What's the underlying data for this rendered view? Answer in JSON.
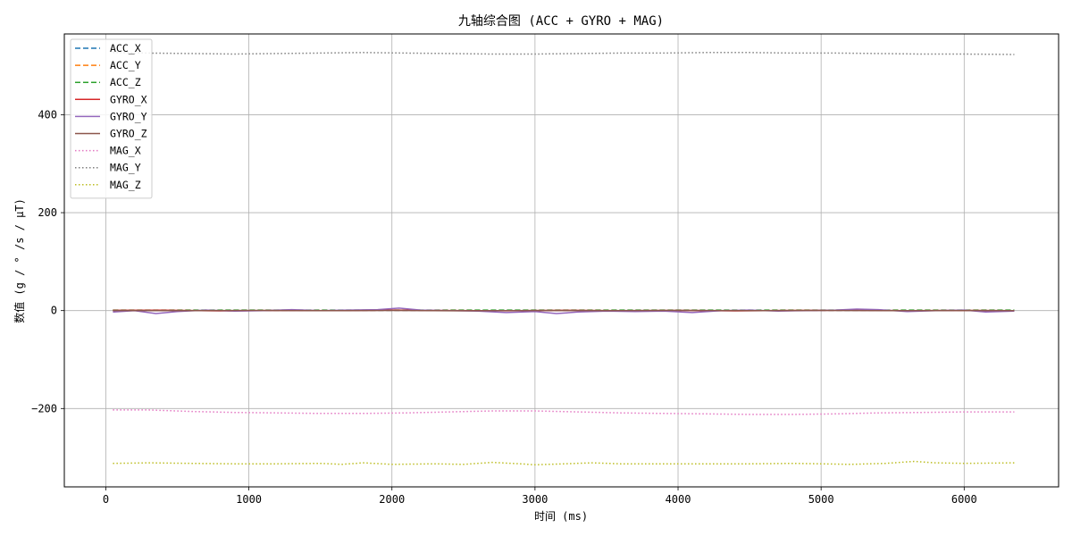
{
  "chart_data": {
    "type": "line",
    "title": "九轴综合图 (ACC + GYRO + MAG)",
    "xlabel": "时间 (ms)",
    "ylabel": "数值 (g / ° /s / μT)",
    "xlim": [
      -290,
      6660
    ],
    "ylim": [
      -360,
      565
    ],
    "xticks": [
      0,
      1000,
      2000,
      3000,
      4000,
      5000,
      6000
    ],
    "yticks": [
      -200,
      0,
      200,
      400
    ],
    "grid": true,
    "legend": "top-left",
    "series": [
      {
        "name": "ACC_X",
        "color": "#1f77b4",
        "dash": "dashed",
        "x": [
          50,
          6350
        ],
        "y": [
          0.3,
          0.3
        ]
      },
      {
        "name": "ACC_Y",
        "color": "#ff7f0e",
        "dash": "dashed",
        "x": [
          50,
          6350
        ],
        "y": [
          0.5,
          0.5
        ]
      },
      {
        "name": "ACC_Z",
        "color": "#2ca02c",
        "dash": "dashed",
        "x": [
          50,
          6350
        ],
        "y": [
          1.0,
          1.0
        ]
      },
      {
        "name": "GYRO_X",
        "color": "#d62728",
        "dash": "solid",
        "x": [
          50,
          400,
          800,
          1200,
          1600,
          2000,
          2400,
          2800,
          3200,
          3600,
          4000,
          4400,
          4800,
          5200,
          5600,
          6000,
          6350
        ],
        "y": [
          0.5,
          0.8,
          -0.5,
          0.4,
          -0.3,
          1.0,
          0.2,
          -0.4,
          0.6,
          -0.2,
          0.3,
          -0.5,
          0.4,
          0.9,
          -0.2,
          0.3,
          -0.1
        ]
      },
      {
        "name": "GYRO_Y",
        "color": "#9467bd",
        "dash": "solid",
        "x": [
          50,
          200,
          350,
          500,
          700,
          900,
          1100,
          1300,
          1500,
          1700,
          1900,
          2050,
          2200,
          2400,
          2600,
          2800,
          3000,
          3150,
          3300,
          3500,
          3700,
          3900,
          4100,
          4300,
          4500,
          4700,
          4900,
          5100,
          5250,
          5400,
          5600,
          5800,
          6000,
          6150,
          6350
        ],
        "y": [
          -3,
          0,
          -6,
          -2,
          1,
          -1,
          0,
          2,
          0,
          1,
          2,
          5,
          1,
          0,
          -1,
          -4,
          -2,
          -6,
          -3,
          -1,
          -2,
          -1,
          -4,
          0,
          1,
          -1,
          0,
          1,
          3,
          2,
          -2,
          0,
          1,
          -3,
          -1
        ]
      },
      {
        "name": "GYRO_Z",
        "color": "#8c564b",
        "dash": "solid",
        "x": [
          50,
          500,
          1000,
          1500,
          2000,
          2500,
          3000,
          3500,
          4000,
          4500,
          5000,
          5500,
          6000,
          6350
        ],
        "y": [
          0.2,
          -0.3,
          0.4,
          -0.2,
          0.3,
          -0.4,
          0.2,
          -0.1,
          0.3,
          -0.2,
          0.4,
          -0.3,
          0.2,
          -0.1
        ]
      },
      {
        "name": "MAG_X",
        "color": "#e377c2",
        "dash": "dotted",
        "x": [
          50,
          300,
          600,
          900,
          1200,
          1500,
          1800,
          2100,
          2400,
          2700,
          3000,
          3300,
          3600,
          3900,
          4200,
          4500,
          4800,
          5100,
          5400,
          5700,
          6000,
          6350
        ],
        "y": [
          -203,
          -203,
          -206,
          -208,
          -209,
          -210,
          -210,
          -209,
          -207,
          -205,
          -205,
          -207,
          -209,
          -210,
          -211,
          -212,
          -212,
          -211,
          -209,
          -208,
          -207,
          -207
        ]
      },
      {
        "name": "MAG_Y",
        "color": "#7f7f7f",
        "dash": "dotted",
        "x": [
          50,
          300,
          600,
          900,
          1200,
          1500,
          1800,
          2100,
          2400,
          2700,
          3000,
          3300,
          3600,
          3900,
          4200,
          4500,
          4800,
          5100,
          5400,
          5700,
          6000,
          6350
        ],
        "y": [
          527,
          526,
          525,
          524,
          525,
          526,
          527,
          526,
          525,
          524,
          524,
          525,
          526,
          526,
          527,
          527,
          526,
          526,
          525,
          524,
          524,
          523
        ]
      },
      {
        "name": "MAG_Z",
        "color": "#bcbd22",
        "dash": "dotted",
        "x": [
          50,
          300,
          600,
          900,
          1200,
          1500,
          1650,
          1800,
          2000,
          2300,
          2500,
          2700,
          2900,
          3000,
          3200,
          3400,
          3600,
          3900,
          4200,
          4500,
          4800,
          5000,
          5200,
          5450,
          5650,
          5800,
          6000,
          6350
        ],
        "y": [
          -312,
          -311,
          -312,
          -313,
          -313,
          -312,
          -314,
          -311,
          -314,
          -313,
          -314,
          -310,
          -313,
          -315,
          -313,
          -311,
          -313,
          -313,
          -313,
          -313,
          -312,
          -313,
          -314,
          -312,
          -308,
          -311,
          -312,
          -311
        ]
      }
    ]
  }
}
